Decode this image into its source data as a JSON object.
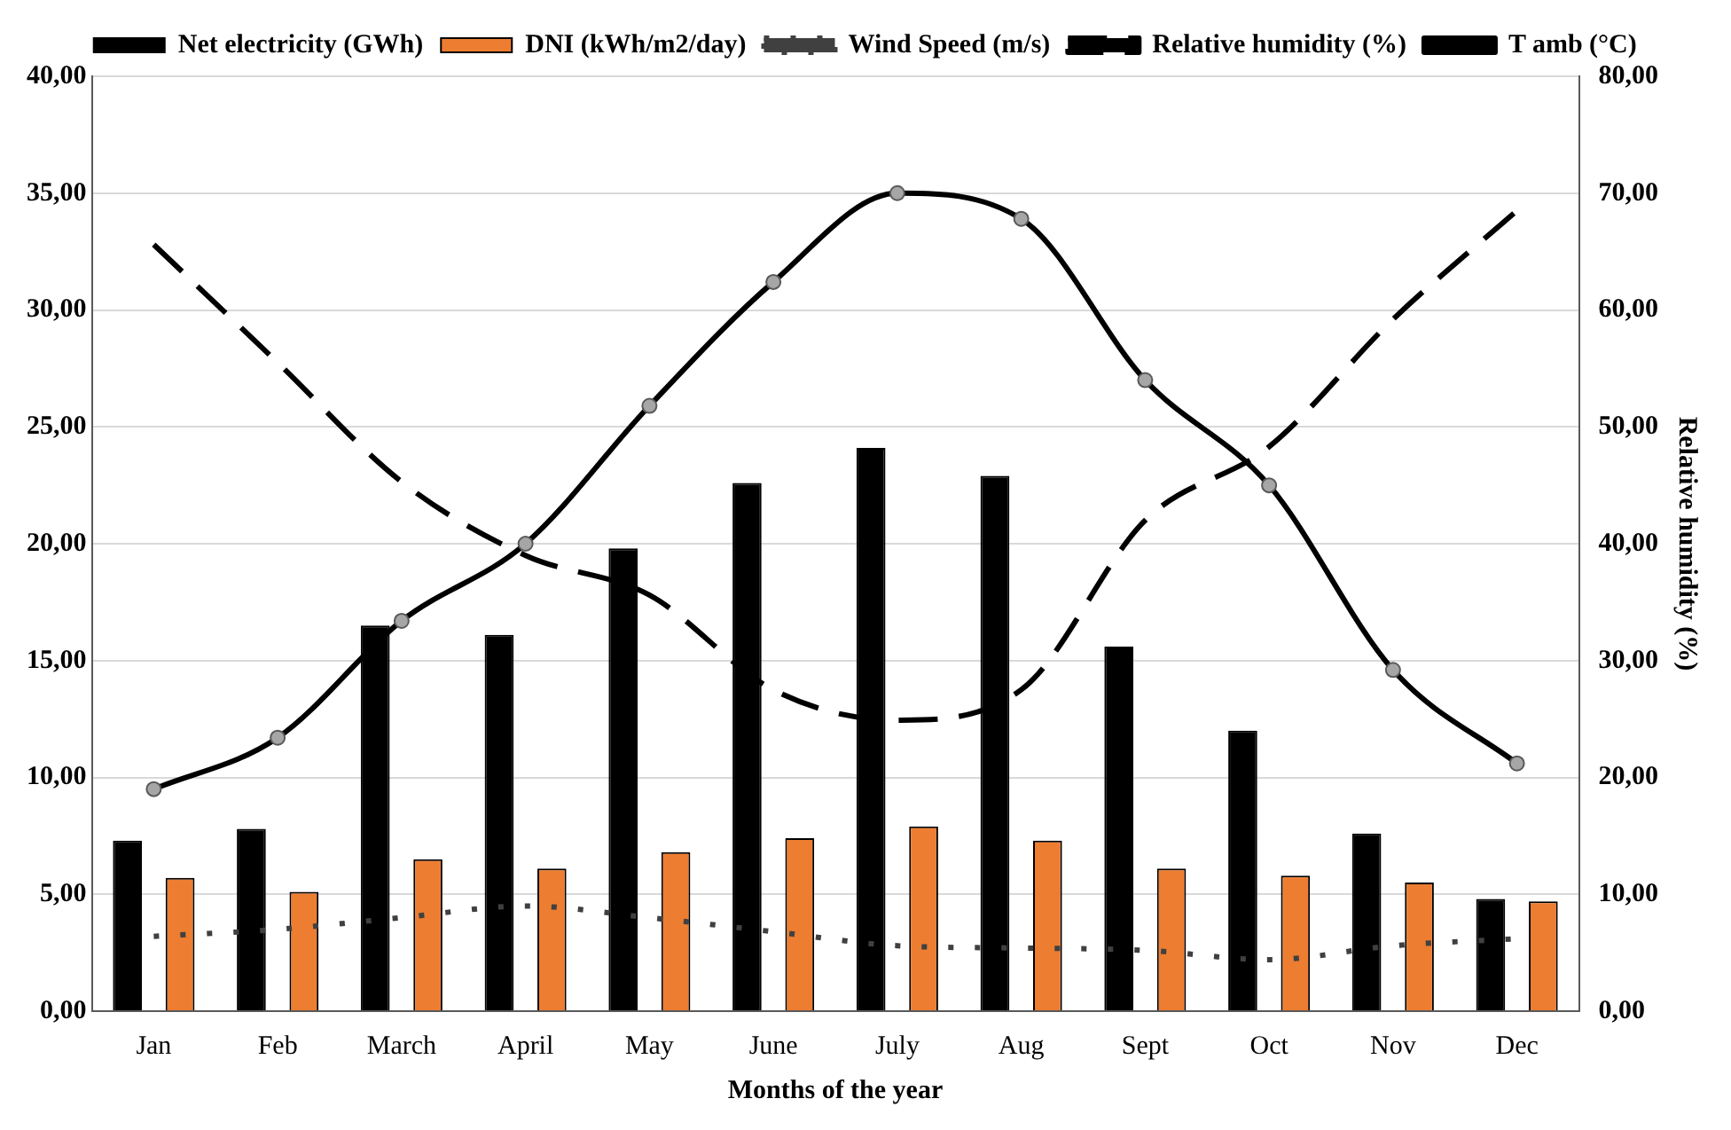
{
  "chart_data": {
    "type": "bar",
    "xlabel": "Months of the year",
    "y2label": "Relative humidity (%)",
    "categories": [
      "Jan",
      "Feb",
      "March",
      "April",
      "May",
      "June",
      "July",
      "Aug",
      "Sept",
      "Oct",
      "Nov",
      "Dec"
    ],
    "series": [
      {
        "name": "Net electricity (GWh)",
        "color": "#000000",
        "values": [
          7.3,
          7.8,
          16.5,
          16.1,
          19.8,
          22.6,
          24.1,
          22.9,
          15.6,
          12.0,
          7.6,
          4.8
        ]
      },
      {
        "name": "DNI (kWh/m2/day)",
        "color": "#ed7d31",
        "values": [
          5.7,
          5.1,
          6.5,
          6.1,
          6.8,
          7.4,
          7.9,
          7.3,
          6.1,
          5.8,
          5.5,
          4.7
        ]
      },
      {
        "name": "Wind Speed (m/s)",
        "type": "line",
        "color": "#404040",
        "line_style": "dotted",
        "marker": "none",
        "values": [
          3.2,
          3.5,
          4.0,
          4.5,
          4.0,
          3.4,
          2.8,
          2.7,
          2.6,
          2.2,
          2.8,
          3.1
        ]
      },
      {
        "name": "Relative humidity (%)",
        "type": "line",
        "color": "#000000",
        "line_style": "dashed",
        "marker": "none",
        "axis": "y2",
        "values": [
          65.6,
          55.5,
          45.3,
          39.0,
          35.6,
          27.5,
          24.9,
          27.5,
          42.0,
          48.3,
          59.2,
          68.5
        ]
      },
      {
        "name": "T amb (°C)",
        "type": "line",
        "color": "#000000",
        "line_style": "solid",
        "marker": "circle",
        "values": [
          9.5,
          11.7,
          16.7,
          20.0,
          25.9,
          31.2,
          35.0,
          33.9,
          27.0,
          22.5,
          14.6,
          10.6
        ]
      }
    ],
    "ylim": [
      0,
      40
    ],
    "yticks": [
      {
        "value": 0,
        "label": "0,00"
      },
      {
        "value": 5,
        "label": "5,00"
      },
      {
        "value": 10,
        "label": "10,00"
      },
      {
        "value": 15,
        "label": "15,00"
      },
      {
        "value": 20,
        "label": "20,00"
      },
      {
        "value": 25,
        "label": "25,00"
      },
      {
        "value": 30,
        "label": "30,00"
      },
      {
        "value": 35,
        "label": "35,00"
      },
      {
        "value": 40,
        "label": "40,00"
      }
    ],
    "y2lim": [
      0,
      80
    ],
    "y2ticks": [
      {
        "value": 0,
        "label": "0,00"
      },
      {
        "value": 10,
        "label": "10,00"
      },
      {
        "value": 20,
        "label": "20,00"
      },
      {
        "value": 30,
        "label": "30,00"
      },
      {
        "value": 40,
        "label": "40,00"
      },
      {
        "value": 50,
        "label": "50,00"
      },
      {
        "value": 60,
        "label": "60,00"
      },
      {
        "value": 70,
        "label": "70,00"
      },
      {
        "value": 80,
        "label": "80,00"
      }
    ],
    "grid": "y",
    "legend": "top"
  }
}
